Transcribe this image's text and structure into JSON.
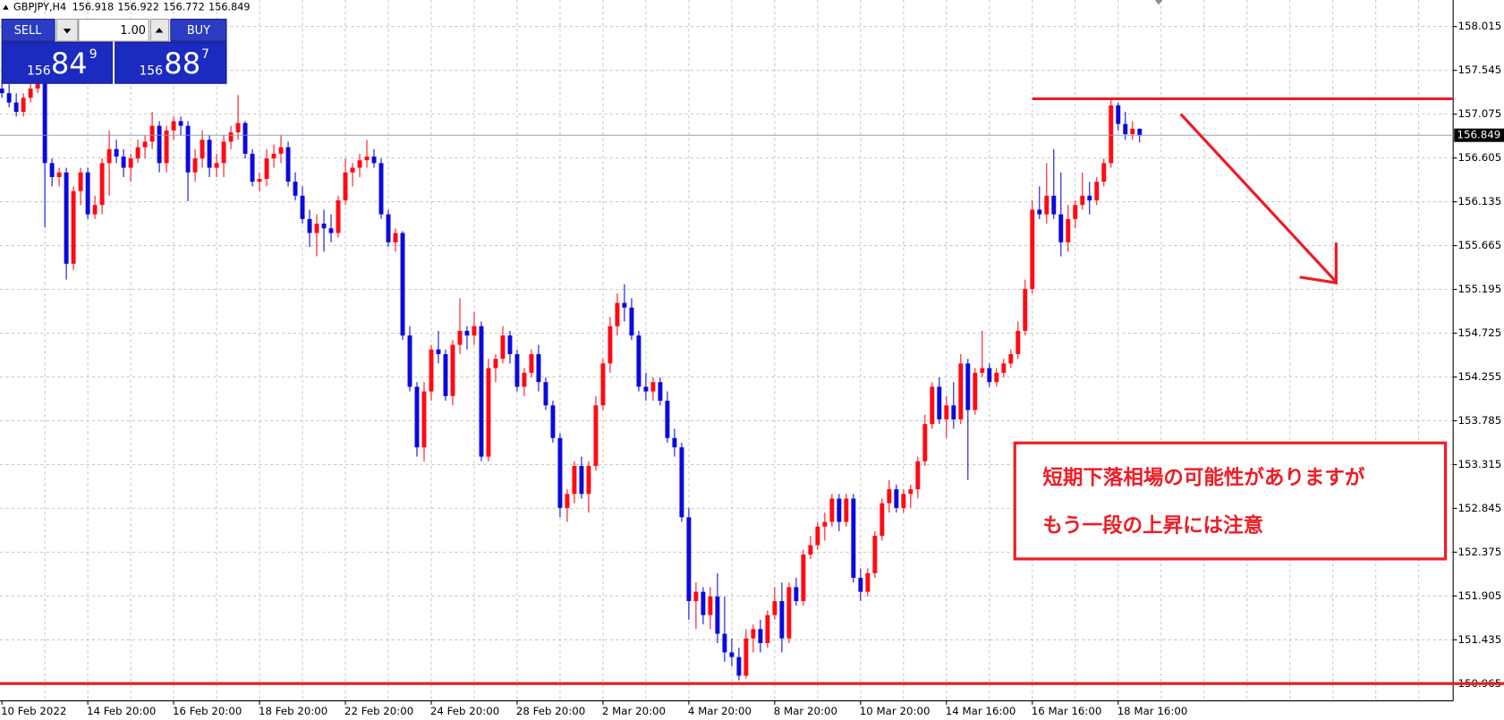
{
  "chart_data": {
    "type": "candlestick",
    "title": "GBPJPY,H4",
    "up_color": "#ff0a14",
    "down_color": "#0a0adc",
    "grid": true,
    "ylim": [
      150.78,
      158.3
    ],
    "yticks": [
      158.015,
      157.545,
      157.075,
      156.605,
      156.135,
      155.665,
      155.195,
      154.725,
      154.255,
      153.785,
      153.315,
      152.845,
      152.375,
      151.905,
      151.435,
      150.965
    ],
    "categories": [
      "10 Feb 2022",
      null,
      null,
      null,
      null,
      null,
      null,
      null,
      null,
      null,
      null,
      null,
      "14 Feb 20:00",
      null,
      null,
      null,
      null,
      null,
      null,
      null,
      null,
      null,
      null,
      null,
      "16 Feb 20:00",
      null,
      null,
      null,
      null,
      null,
      null,
      null,
      null,
      null,
      null,
      null,
      "18 Feb 20:00",
      null,
      null,
      null,
      null,
      null,
      null,
      null,
      null,
      null,
      null,
      null,
      "22 Feb 20:00",
      null,
      null,
      null,
      null,
      null,
      null,
      null,
      null,
      null,
      null,
      null,
      "24 Feb 20:00",
      null,
      null,
      null,
      null,
      null,
      null,
      null,
      null,
      null,
      null,
      null,
      "28 Feb 20:00",
      null,
      null,
      null,
      null,
      null,
      null,
      null,
      null,
      null,
      null,
      null,
      "2 Mar 20:00",
      null,
      null,
      null,
      null,
      null,
      null,
      null,
      null,
      null,
      null,
      null,
      "4 Mar 20:00",
      null,
      null,
      null,
      null,
      null,
      null,
      null,
      null,
      null,
      null,
      null,
      "8 Mar 20:00",
      null,
      null,
      null,
      null,
      null,
      null,
      null,
      null,
      null,
      null,
      null,
      "10 Mar 20:00",
      null,
      null,
      null,
      null,
      null,
      null,
      null,
      null,
      null,
      null,
      null,
      "14 Mar 16:00",
      null,
      null,
      null,
      null,
      null,
      null,
      null,
      null,
      null,
      null,
      null,
      "16 Mar 16:00",
      null,
      null,
      null,
      null,
      null,
      null,
      null,
      null,
      null,
      null,
      null,
      "18 Mar 16:00",
      null,
      null,
      null
    ],
    "open": [
      157.35,
      157.3,
      157.2,
      157.1,
      157.25,
      157.35,
      157.4,
      156.55,
      156.4,
      156.45,
      155.47,
      156.25,
      156.45,
      156.0,
      156.1,
      156.55,
      156.7,
      156.62,
      156.5,
      156.6,
      156.72,
      156.78,
      156.95,
      156.55,
      156.9,
      157.0,
      156.95,
      156.45,
      156.6,
      156.8,
      156.5,
      156.55,
      156.78,
      156.88,
      156.98,
      156.65,
      156.35,
      156.38,
      156.6,
      156.65,
      156.72,
      156.35,
      156.2,
      155.95,
      155.8,
      155.9,
      155.85,
      155.8,
      156.15,
      156.45,
      156.5,
      156.58,
      156.62,
      156.55,
      156.0,
      155.7,
      155.8,
      154.7,
      154.15,
      153.5,
      154.1,
      154.55,
      154.5,
      154.05,
      154.6,
      154.75,
      154.7,
      154.8,
      153.4,
      154.35,
      154.45,
      154.7,
      154.5,
      154.15,
      154.3,
      154.5,
      154.2,
      153.95,
      153.6,
      152.85,
      153.0,
      153.3,
      153.0,
      153.3,
      153.95,
      154.4,
      154.8,
      155.05,
      155.0,
      154.7,
      154.15,
      154.1,
      154.2,
      154.0,
      153.6,
      153.5,
      152.75,
      151.85,
      151.95,
      151.7,
      151.9,
      151.5,
      151.3,
      151.25,
      151.05,
      151.45,
      151.55,
      151.4,
      151.7,
      151.85,
      151.45,
      152.0,
      151.85,
      152.35,
      152.45,
      152.65,
      152.7,
      152.95,
      152.7,
      152.95,
      152.1,
      151.95,
      152.15,
      152.55,
      152.9,
      153.05,
      152.85,
      153.0,
      153.05,
      153.35,
      153.75,
      154.15,
      153.8,
      153.95,
      153.8,
      154.4,
      153.9,
      154.3,
      154.35,
      154.2,
      154.3,
      154.4,
      154.5,
      154.75,
      155.2,
      156.05,
      156.0,
      156.2,
      156.0,
      155.7,
      155.95,
      156.1,
      156.2,
      156.15,
      156.35,
      156.55,
      157.17,
      156.97,
      156.86,
      156.918
    ],
    "high": [
      157.45,
      157.4,
      157.3,
      157.3,
      157.4,
      157.45,
      157.42,
      156.6,
      156.5,
      156.5,
      156.3,
      156.5,
      156.5,
      156.2,
      156.6,
      156.9,
      156.8,
      156.7,
      156.65,
      156.8,
      156.85,
      157.1,
      157.0,
      156.95,
      157.05,
      157.05,
      157.0,
      156.7,
      156.9,
      156.85,
      156.65,
      156.85,
      156.95,
      157.28,
      157.0,
      156.7,
      156.45,
      156.7,
      156.75,
      156.85,
      156.78,
      156.45,
      156.3,
      156.05,
      156.0,
      156.05,
      156.0,
      156.2,
      156.6,
      156.55,
      156.65,
      156.8,
      156.7,
      156.6,
      156.05,
      155.85,
      155.82,
      154.8,
      154.2,
      154.2,
      154.6,
      154.75,
      154.55,
      154.65,
      155.1,
      154.8,
      154.95,
      154.85,
      154.45,
      154.5,
      154.8,
      154.75,
      154.55,
      154.35,
      154.55,
      154.6,
      154.25,
      154.0,
      153.65,
      153.05,
      153.35,
      153.4,
      153.35,
      154.05,
      154.45,
      154.9,
      155.15,
      155.25,
      155.1,
      154.75,
      154.3,
      154.25,
      154.25,
      154.1,
      153.7,
      153.55,
      152.85,
      152.05,
      152.0,
      152.0,
      152.15,
      151.9,
      151.45,
      151.35,
      151.55,
      151.6,
      151.65,
      151.75,
      152.0,
      152.05,
      152.05,
      152.1,
      152.4,
      152.55,
      152.7,
      152.8,
      153.0,
      153.0,
      153.0,
      153.0,
      152.2,
      152.2,
      152.6,
      152.95,
      153.15,
      153.1,
      153.05,
      153.1,
      153.4,
      153.85,
      154.2,
      154.25,
      154.05,
      154.2,
      154.5,
      154.45,
      154.35,
      154.75,
      154.4,
      154.35,
      154.45,
      154.55,
      154.85,
      155.3,
      156.15,
      156.3,
      156.55,
      156.7,
      156.45,
      156.1,
      156.15,
      156.45,
      156.35,
      156.4,
      156.6,
      157.24,
      157.2,
      157.1,
      157.0,
      156.922
    ],
    "low": [
      157.25,
      157.15,
      157.05,
      157.05,
      157.2,
      157.3,
      155.86,
      156.3,
      156.3,
      155.3,
      155.4,
      156.1,
      155.95,
      155.95,
      156.0,
      156.2,
      156.55,
      156.4,
      156.35,
      156.55,
      156.6,
      156.7,
      156.45,
      156.45,
      156.8,
      156.85,
      156.14,
      156.35,
      156.5,
      156.4,
      156.4,
      156.4,
      156.7,
      156.8,
      156.6,
      156.3,
      156.25,
      156.3,
      156.5,
      156.55,
      156.3,
      156.15,
      155.9,
      155.65,
      155.55,
      155.6,
      155.7,
      155.75,
      156.1,
      156.3,
      156.4,
      156.5,
      156.5,
      155.95,
      155.65,
      155.6,
      154.65,
      154.1,
      153.4,
      153.35,
      154.0,
      154.4,
      154.0,
      153.95,
      154.5,
      154.55,
      154.6,
      153.35,
      153.35,
      154.2,
      154.4,
      154.4,
      154.1,
      154.05,
      154.25,
      154.1,
      153.9,
      153.55,
      152.75,
      152.7,
      152.9,
      152.95,
      152.8,
      153.25,
      153.9,
      154.3,
      154.7,
      154.85,
      154.65,
      154.1,
      154.0,
      154.0,
      153.95,
      153.55,
      153.4,
      152.7,
      151.65,
      151.55,
      151.6,
      151.55,
      151.4,
      151.2,
      151.15,
      151.0,
      151.02,
      151.3,
      151.3,
      151.35,
      151.65,
      151.3,
      151.4,
      151.8,
      151.8,
      152.3,
      152.4,
      152.5,
      152.65,
      152.6,
      152.65,
      152.05,
      151.85,
      151.9,
      152.1,
      152.5,
      152.8,
      152.8,
      152.8,
      152.85,
      152.95,
      153.3,
      153.7,
      153.75,
      153.6,
      153.7,
      153.75,
      153.15,
      153.85,
      154.25,
      154.15,
      154.15,
      154.25,
      154.35,
      154.45,
      154.7,
      155.15,
      155.95,
      155.9,
      155.95,
      155.55,
      155.6,
      155.85,
      156.05,
      156.0,
      156.1,
      156.3,
      156.5,
      156.9,
      156.8,
      156.8,
      156.772
    ],
    "close": [
      157.3,
      157.2,
      157.1,
      157.25,
      157.35,
      157.4,
      156.55,
      156.4,
      156.45,
      155.47,
      156.25,
      156.45,
      156.0,
      156.1,
      156.55,
      156.7,
      156.62,
      156.5,
      156.6,
      156.72,
      156.78,
      156.95,
      156.55,
      156.9,
      157.0,
      156.95,
      156.45,
      156.6,
      156.8,
      156.5,
      156.55,
      156.78,
      156.88,
      156.98,
      156.65,
      156.35,
      156.38,
      156.6,
      156.65,
      156.72,
      156.35,
      156.2,
      155.95,
      155.8,
      155.9,
      155.85,
      155.8,
      156.15,
      156.45,
      156.5,
      156.58,
      156.62,
      156.55,
      156.0,
      155.7,
      155.8,
      154.7,
      154.15,
      153.5,
      154.1,
      154.55,
      154.5,
      154.05,
      154.6,
      154.75,
      154.7,
      154.8,
      153.4,
      154.35,
      154.45,
      154.7,
      154.5,
      154.15,
      154.3,
      154.5,
      154.2,
      153.95,
      153.6,
      152.85,
      153.0,
      153.3,
      153.0,
      153.3,
      153.95,
      154.4,
      154.8,
      155.05,
      155.0,
      154.7,
      154.15,
      154.1,
      154.2,
      154.0,
      153.6,
      153.5,
      152.75,
      151.85,
      151.95,
      151.7,
      151.9,
      151.5,
      151.3,
      151.25,
      151.05,
      151.45,
      151.55,
      151.4,
      151.7,
      151.85,
      151.45,
      152.0,
      151.85,
      152.35,
      152.45,
      152.65,
      152.7,
      152.95,
      152.7,
      152.95,
      152.1,
      151.95,
      152.15,
      152.55,
      152.9,
      153.05,
      152.85,
      153.0,
      153.05,
      153.35,
      153.75,
      154.15,
      153.8,
      153.95,
      153.8,
      154.4,
      153.9,
      154.3,
      154.35,
      154.2,
      154.3,
      154.4,
      154.5,
      154.75,
      155.2,
      156.05,
      156.0,
      156.2,
      156.0,
      155.7,
      155.95,
      156.1,
      156.2,
      156.15,
      156.35,
      156.55,
      157.17,
      156.97,
      156.86,
      156.918,
      156.849
    ],
    "hlines": [
      {
        "value": 157.24,
        "from": 144,
        "color": "#ee1c25"
      },
      {
        "value": 150.965,
        "color": "#ee1c25"
      }
    ],
    "annotations": [
      "短期下落相場の可能性がありますが",
      "もう一段の上昇には注意"
    ]
  },
  "trade_panel": {
    "sell": "SELL",
    "buy": "BUY",
    "volume": "1.00",
    "sell_price": [
      "156",
      "84",
      "9"
    ],
    "buy_price": [
      "156",
      "88",
      "7"
    ]
  }
}
